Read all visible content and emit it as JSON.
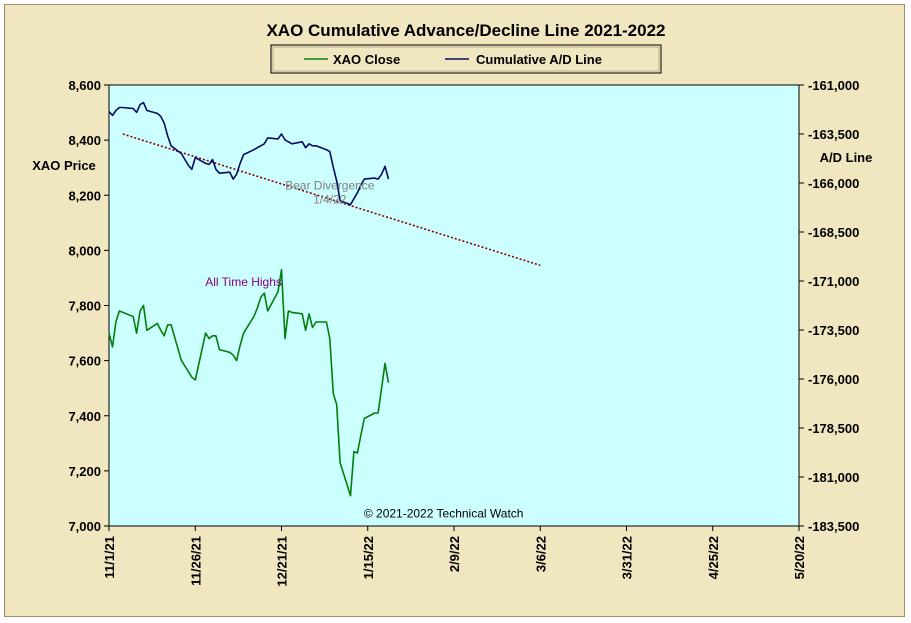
{
  "chart_data": {
    "type": "line",
    "title": "XAO Cumulative Advance/Decline Line 2021-2022",
    "ylabel_left": "XAO Price",
    "ylabel_right": "A/D Line",
    "x_ticks": [
      "11/1/21",
      "11/26/21",
      "12/21/21",
      "1/15/22",
      "2/9/22",
      "3/6/22",
      "3/31/22",
      "4/25/22",
      "5/20/22"
    ],
    "x_range": [
      "11/1/21",
      "5/20/22"
    ],
    "y_left_ticks": [
      "7,000",
      "7,200",
      "7,400",
      "7,600",
      "7,800",
      "8,000",
      "8,200",
      "8,400",
      "8,600"
    ],
    "y_left_range": [
      7000,
      8600
    ],
    "y_right_ticks": [
      "-183,500",
      "-181,000",
      "-178,500",
      "-176,000",
      "-173,500",
      "-171,000",
      "-168,500",
      "-166,000",
      "-163,500",
      "-161,000"
    ],
    "y_right_range": [
      -183500,
      -161000
    ],
    "legend": {
      "placement": "top-center",
      "entries": [
        "XAO Close",
        "Cumulative A/D Line"
      ]
    },
    "grid": false,
    "series": [
      {
        "name": "XAO Close",
        "axis": "left",
        "color": "#00800a",
        "points": [
          [
            "11/1/21",
            7700
          ],
          [
            "11/2/21",
            7650
          ],
          [
            "11/3/21",
            7740
          ],
          [
            "11/4/21",
            7780
          ],
          [
            "11/5/21",
            7775
          ],
          [
            "11/8/21",
            7760
          ],
          [
            "11/9/21",
            7700
          ],
          [
            "11/10/21",
            7780
          ],
          [
            "11/11/21",
            7800
          ],
          [
            "11/12/21",
            7710
          ],
          [
            "11/15/21",
            7735
          ],
          [
            "11/16/21",
            7710
          ],
          [
            "11/17/21",
            7690
          ],
          [
            "11/18/21",
            7730
          ],
          [
            "11/19/21",
            7730
          ],
          [
            "11/22/21",
            7600
          ],
          [
            "11/23/21",
            7580
          ],
          [
            "11/24/21",
            7560
          ],
          [
            "11/25/21",
            7540
          ],
          [
            "11/26/21",
            7530
          ],
          [
            "11/29/21",
            7700
          ],
          [
            "11/30/21",
            7680
          ],
          [
            "12/1/21",
            7690
          ],
          [
            "12/2/21",
            7690
          ],
          [
            "12/3/21",
            7640
          ],
          [
            "12/6/21",
            7630
          ],
          [
            "12/7/21",
            7620
          ],
          [
            "12/8/21",
            7600
          ],
          [
            "12/9/21",
            7655
          ],
          [
            "12/10/21",
            7700
          ],
          [
            "12/13/21",
            7760
          ],
          [
            "12/14/21",
            7790
          ],
          [
            "12/15/21",
            7830
          ],
          [
            "12/16/21",
            7845
          ],
          [
            "12/17/21",
            7780
          ],
          [
            "12/20/21",
            7850
          ],
          [
            "12/21/21",
            7930
          ],
          [
            "12/22/21",
            7680
          ],
          [
            "12/23/21",
            7780
          ],
          [
            "12/24/21",
            7775
          ],
          [
            "12/27/21",
            7770
          ],
          [
            "12/28/21",
            7710
          ],
          [
            "12/29/21",
            7770
          ],
          [
            "12/30/21",
            7720
          ],
          [
            "12/31/21",
            7740
          ],
          [
            "1/3/22",
            7740
          ],
          [
            "1/4/22",
            7680
          ],
          [
            "1/5/22",
            7480
          ],
          [
            "1/6/22",
            7440
          ],
          [
            "1/7/22",
            7230
          ],
          [
            "1/10/22",
            7110
          ],
          [
            "1/11/22",
            7270
          ],
          [
            "1/12/22",
            7265
          ],
          [
            "1/13/22",
            7330
          ],
          [
            "1/14/22",
            7390
          ],
          [
            "1/17/22",
            7410
          ],
          [
            "1/18/22",
            7410
          ],
          [
            "1/19/22",
            7500
          ],
          [
            "1/20/22",
            7590
          ],
          [
            "1/21/22",
            7520
          ]
        ]
      },
      {
        "name": "Cumulative A/D Line",
        "axis": "right",
        "color": "#0a0a64",
        "points": [
          [
            "11/1/21",
            -162350
          ],
          [
            "11/2/21",
            -162550
          ],
          [
            "11/3/21",
            -162300
          ],
          [
            "11/4/21",
            -162150
          ],
          [
            "11/5/21",
            -162150
          ],
          [
            "11/8/21",
            -162200
          ],
          [
            "11/9/21",
            -162400
          ],
          [
            "11/10/21",
            -162000
          ],
          [
            "11/11/21",
            -161900
          ],
          [
            "11/12/21",
            -162300
          ],
          [
            "11/15/21",
            -162450
          ],
          [
            "11/16/21",
            -162600
          ],
          [
            "11/17/21",
            -162950
          ],
          [
            "11/18/21",
            -163600
          ],
          [
            "11/19/21",
            -164100
          ],
          [
            "11/22/21",
            -164500
          ],
          [
            "11/23/21",
            -164800
          ],
          [
            "11/24/21",
            -165100
          ],
          [
            "11/25/21",
            -165300
          ],
          [
            "11/26/21",
            -164700
          ],
          [
            "11/29/21",
            -165000
          ],
          [
            "11/30/21",
            -165050
          ],
          [
            "12/1/21",
            -164800
          ],
          [
            "12/2/21",
            -165300
          ],
          [
            "12/3/21",
            -165500
          ],
          [
            "12/6/21",
            -165450
          ],
          [
            "12/7/21",
            -165800
          ],
          [
            "12/8/21",
            -165550
          ],
          [
            "12/9/21",
            -165000
          ],
          [
            "12/10/21",
            -164550
          ],
          [
            "12/13/21",
            -164300
          ],
          [
            "12/14/21",
            -164200
          ],
          [
            "12/15/21",
            -164100
          ],
          [
            "12/16/21",
            -164000
          ],
          [
            "12/17/21",
            -163700
          ],
          [
            "12/20/21",
            -163750
          ],
          [
            "12/21/21",
            -163500
          ],
          [
            "12/22/21",
            -163800
          ],
          [
            "12/23/21",
            -163900
          ],
          [
            "12/24/21",
            -164000
          ],
          [
            "12/27/21",
            -163900
          ],
          [
            "12/28/21",
            -164200
          ],
          [
            "12/29/21",
            -164000
          ],
          [
            "12/30/21",
            -164100
          ],
          [
            "12/31/21",
            -164100
          ],
          [
            "1/3/22",
            -164300
          ],
          [
            "1/4/22",
            -164400
          ],
          [
            "1/5/22",
            -165200
          ],
          [
            "1/6/22",
            -165900
          ],
          [
            "1/7/22",
            -166900
          ],
          [
            "1/10/22",
            -167100
          ],
          [
            "1/11/22",
            -166800
          ],
          [
            "1/12/22",
            -166500
          ],
          [
            "1/13/22",
            -166100
          ],
          [
            "1/14/22",
            -165800
          ],
          [
            "1/17/22",
            -165750
          ],
          [
            "1/18/22",
            -165800
          ],
          [
            "1/19/22",
            -165550
          ],
          [
            "1/20/22",
            -165150
          ],
          [
            "1/21/22",
            -165800
          ]
        ]
      }
    ],
    "trendline": {
      "axis": "right",
      "color": "#8b0000",
      "style": "dotted",
      "points": [
        [
          "11/5/21",
          -163500
        ],
        [
          "3/6/22",
          -170200
        ]
      ]
    },
    "annotations": [
      {
        "text": "Bear Divergence",
        "x": "1/4/22",
        "y": 8220,
        "axis": "left",
        "color": "#808080"
      },
      {
        "text": "1/4/22",
        "x": "1/4/22",
        "y": 8170,
        "axis": "left",
        "color": "#808080"
      },
      {
        "text": "All Time Highs",
        "x": "12/10/21",
        "y": 7870,
        "axis": "left",
        "color": "#800080"
      },
      {
        "text": "© 2021-2022  Technical  Watch",
        "x": "2/6/22",
        "y": 7030,
        "axis": "left",
        "color": "#000000"
      }
    ],
    "colors": {
      "plot_background": "#ccffff",
      "frame_background": "#f0e6c0"
    }
  }
}
